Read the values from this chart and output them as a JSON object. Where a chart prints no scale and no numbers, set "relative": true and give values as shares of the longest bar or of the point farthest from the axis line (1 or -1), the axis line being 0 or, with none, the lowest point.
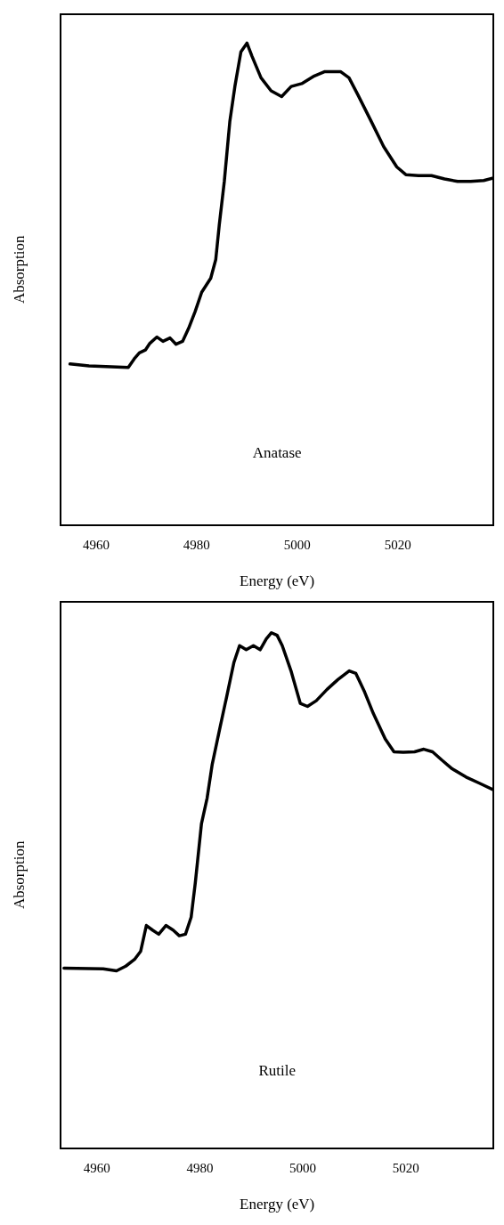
{
  "chart_data": [
    {
      "type": "line",
      "xlabel": "Energy (eV)",
      "ylabel": "Absorption",
      "relative": true,
      "marker": "none",
      "xlim": [
        4953,
        5039
      ],
      "xticks": [
        4960,
        4980,
        5000,
        5020
      ],
      "annotations": [
        "Anatase"
      ],
      "series": [
        {
          "color": "#000000",
          "x": [
            4954.8,
            4958.6,
            4966.4,
            4967.6,
            4968.6,
            4969.8,
            4970.7,
            4972.1,
            4973.3,
            4974.7,
            4975.9,
            4977.2,
            4978.4,
            4979.7,
            4981.0,
            4982.8,
            4983.8,
            4984.5,
            4985.5,
            4986.6,
            4987.6,
            4988.8,
            4990.0,
            4991.0,
            4992.8,
            4994.8,
            4996.9,
            4998.8,
            5000.9,
            5003.4,
            5005.5,
            5008.6,
            5010.3,
            5012.1,
            5014.7,
            5017.2,
            5019.8,
            5021.6,
            5024.1,
            5026.7,
            5029.3,
            5031.9,
            5034.5,
            5037.1,
            5039.0
          ],
          "values": [
            0.334,
            0.33,
            0.327,
            0.345,
            0.357,
            0.363,
            0.377,
            0.39,
            0.381,
            0.388,
            0.375,
            0.381,
            0.408,
            0.443,
            0.483,
            0.512,
            0.551,
            0.623,
            0.713,
            0.838,
            0.91,
            0.982,
            1,
            0.973,
            0.928,
            0.901,
            0.889,
            0.91,
            0.916,
            0.932,
            0.941,
            0.941,
            0.928,
            0.892,
            0.838,
            0.785,
            0.743,
            0.727,
            0.725,
            0.725,
            0.718,
            0.713,
            0.713,
            0.715,
            0.72
          ]
        }
      ]
    },
    {
      "type": "line",
      "xlabel": "Energy (eV)",
      "ylabel": "Absorption",
      "relative": true,
      "marker": "none",
      "xlim": [
        4953,
        5037
      ],
      "xticks": [
        4960,
        4980,
        5000,
        5020
      ],
      "annotations": [
        "Rutile"
      ],
      "series": [
        {
          "color": "#000000",
          "x": [
            4953.6,
            4961.2,
            4963.8,
            4965.6,
            4967.3,
            4968.5,
            4969.6,
            4970.8,
            4972.0,
            4973.4,
            4974.8,
            4976.0,
            4977.2,
            4978.3,
            4979.1,
            4980.3,
            4981.4,
            4982.4,
            4983.8,
            4985.2,
            4986.6,
            4987.7,
            4989.0,
            4990.4,
            4991.7,
            4992.9,
            4993.9,
            4995.0,
            4996.0,
            4997.7,
            4999.5,
            5000.9,
            5002.6,
            5004.7,
            5006.8,
            5009.0,
            5010.3,
            5012.0,
            5013.7,
            5016.0,
            5017.7,
            5019.5,
            5021.7,
            5023.5,
            5025.2,
            5027.0,
            5029.0,
            5031.7,
            5034.3,
            5037.0
          ],
          "values": [
            0.349,
            0.348,
            0.344,
            0.353,
            0.366,
            0.382,
            0.432,
            0.423,
            0.415,
            0.432,
            0.423,
            0.412,
            0.415,
            0.448,
            0.514,
            0.629,
            0.679,
            0.745,
            0.811,
            0.876,
            0.942,
            0.975,
            0.967,
            0.975,
            0.967,
            0.988,
            1,
            0.995,
            0.975,
            0.926,
            0.863,
            0.857,
            0.868,
            0.89,
            0.909,
            0.926,
            0.921,
            0.885,
            0.843,
            0.794,
            0.769,
            0.768,
            0.769,
            0.774,
            0.769,
            0.753,
            0.736,
            0.72,
            0.708,
            0.695
          ]
        }
      ]
    }
  ]
}
